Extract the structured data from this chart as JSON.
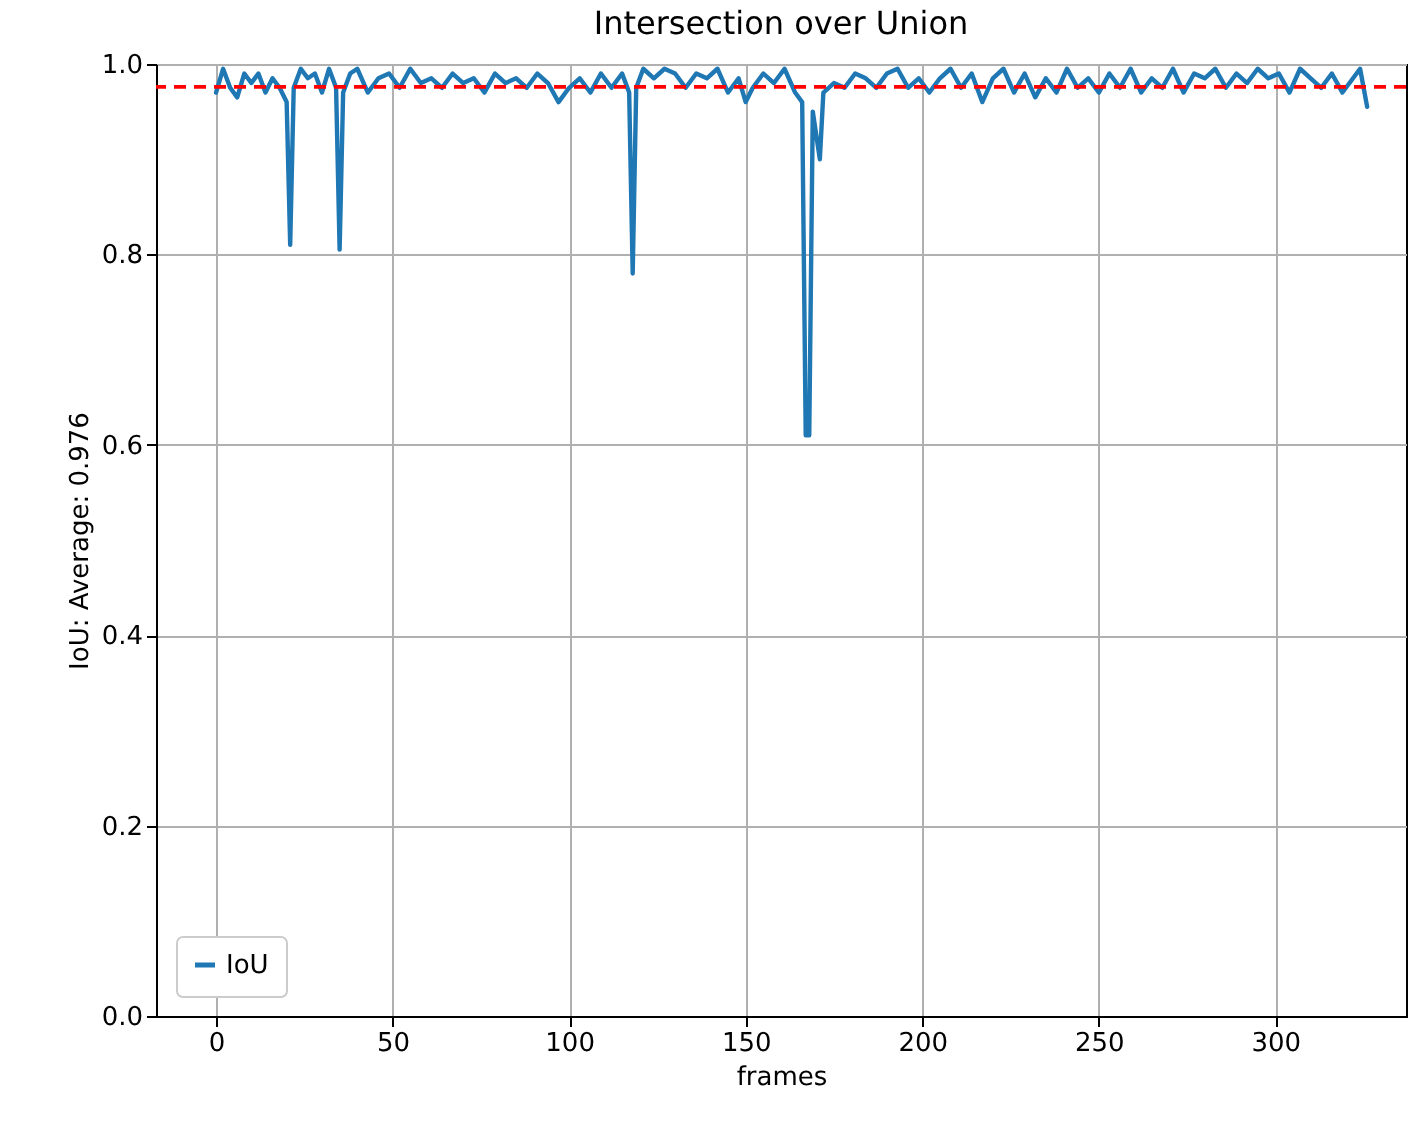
{
  "chart_data": {
    "type": "line",
    "title": "Intersection over Union",
    "xlabel": "frames",
    "ylabel": "IoU: Average: 0.976",
    "xlim": [
      -17,
      337
    ],
    "ylim": [
      0,
      1
    ],
    "xticks": [
      0,
      50,
      100,
      150,
      200,
      250,
      300
    ],
    "yticks": [
      {
        "value": 0,
        "label": "0.0"
      },
      0.2,
      0.4,
      0.6,
      0.8,
      {
        "value": 1,
        "label": "1.0"
      }
    ],
    "grid": true,
    "legend": "bottom left",
    "ref_lines": [
      {
        "axis": "y",
        "value": 0.976,
        "color": "#ff0000",
        "line_style": "dashed"
      }
    ],
    "series": [
      {
        "name": "IoU",
        "color": "#1f77b4",
        "x": [
          0,
          2,
          4,
          6,
          8,
          10,
          12,
          14,
          16,
          18,
          20,
          21,
          22,
          24,
          26,
          28,
          30,
          32,
          34,
          35,
          36,
          38,
          40,
          43,
          46,
          49,
          52,
          55,
          58,
          61,
          64,
          67,
          70,
          73,
          76,
          79,
          82,
          85,
          88,
          91,
          94,
          97,
          100,
          103,
          106,
          109,
          112,
          115,
          117,
          118,
          119,
          121,
          124,
          127,
          130,
          133,
          136,
          139,
          142,
          145,
          148,
          150,
          152,
          155,
          158,
          161,
          164,
          166,
          167,
          168,
          169,
          171,
          172,
          175,
          178,
          181,
          184,
          187,
          190,
          193,
          196,
          199,
          202,
          205,
          208,
          211,
          214,
          217,
          220,
          223,
          226,
          229,
          232,
          235,
          238,
          241,
          244,
          247,
          250,
          253,
          256,
          259,
          262,
          265,
          268,
          271,
          274,
          277,
          280,
          283,
          286,
          289,
          292,
          295,
          298,
          301,
          304,
          307,
          310,
          313,
          316,
          319,
          322,
          324,
          326
        ],
        "values": [
          0.97,
          0.995,
          0.975,
          0.965,
          0.99,
          0.98,
          0.99,
          0.97,
          0.985,
          0.975,
          0.96,
          0.81,
          0.975,
          0.995,
          0.985,
          0.99,
          0.97,
          0.995,
          0.975,
          0.805,
          0.97,
          0.99,
          0.995,
          0.97,
          0.985,
          0.99,
          0.975,
          0.995,
          0.98,
          0.985,
          0.975,
          0.99,
          0.98,
          0.985,
          0.97,
          0.99,
          0.98,
          0.985,
          0.975,
          0.99,
          0.98,
          0.96,
          0.975,
          0.985,
          0.97,
          0.99,
          0.975,
          0.99,
          0.97,
          0.78,
          0.975,
          0.995,
          0.985,
          0.995,
          0.99,
          0.975,
          0.99,
          0.985,
          0.995,
          0.97,
          0.985,
          0.96,
          0.975,
          0.99,
          0.98,
          0.995,
          0.97,
          0.96,
          0.61,
          0.61,
          0.95,
          0.9,
          0.97,
          0.98,
          0.975,
          0.99,
          0.985,
          0.975,
          0.99,
          0.995,
          0.975,
          0.985,
          0.97,
          0.985,
          0.995,
          0.975,
          0.99,
          0.96,
          0.985,
          0.995,
          0.97,
          0.99,
          0.965,
          0.985,
          0.97,
          0.995,
          0.975,
          0.985,
          0.97,
          0.99,
          0.975,
          0.995,
          0.97,
          0.985,
          0.975,
          0.995,
          0.97,
          0.99,
          0.985,
          0.995,
          0.975,
          0.99,
          0.98,
          0.995,
          0.985,
          0.99,
          0.97,
          0.995,
          0.985,
          0.975,
          0.99,
          0.97,
          0.985,
          0.995,
          0.955
        ]
      }
    ]
  }
}
